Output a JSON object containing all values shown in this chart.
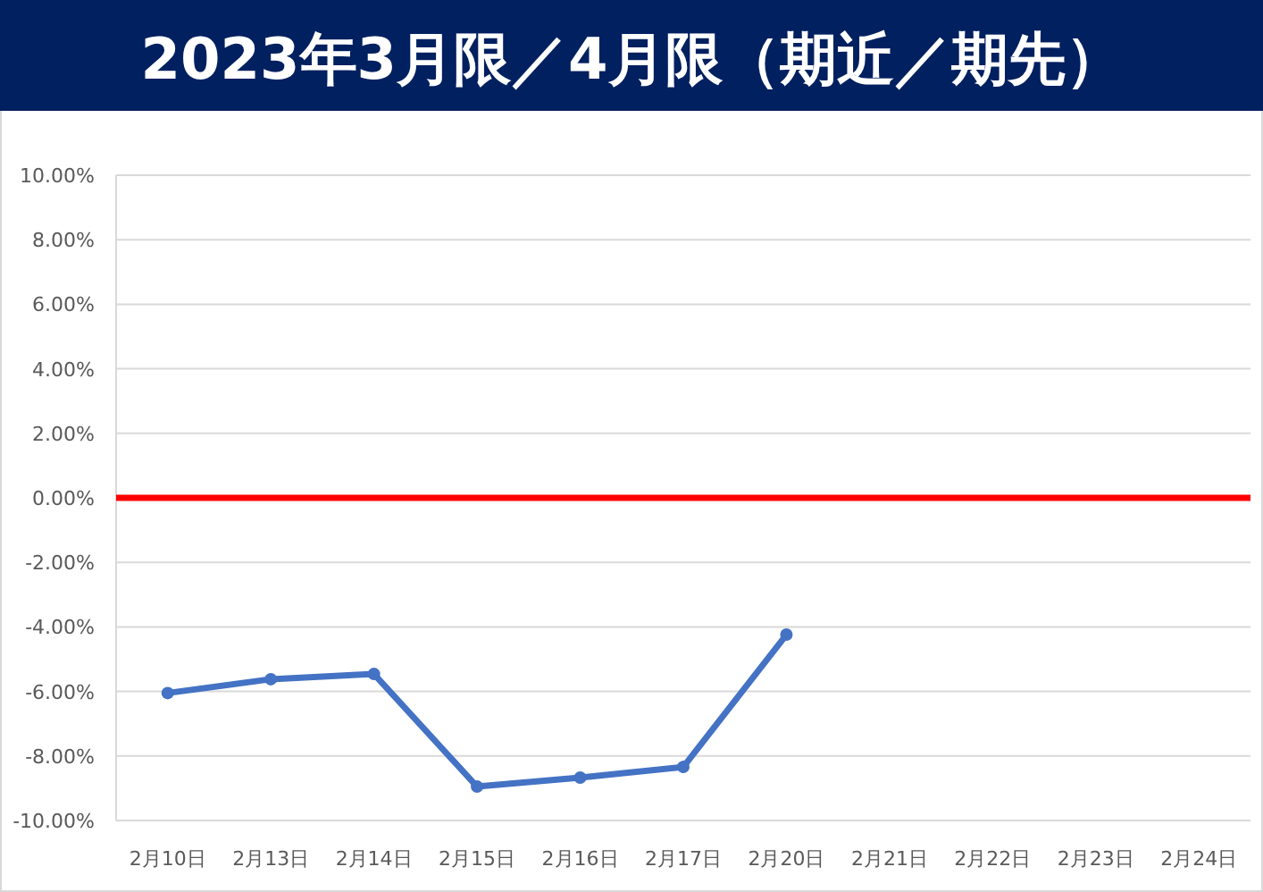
{
  "chart_data": {
    "type": "line",
    "title": "2023年3月限／4月限（期近／期先）",
    "categories": [
      "2月10日",
      "2月13日",
      "2月14日",
      "2月15日",
      "2月16日",
      "2月17日",
      "2月20日",
      "2月21日",
      "2月22日",
      "2月23日",
      "2月24日"
    ],
    "series": [
      {
        "color": "#4472c4",
        "values": [
          -6.05,
          -5.62,
          -5.46,
          -8.95,
          -8.67,
          -8.34,
          -4.24,
          null,
          null,
          null,
          null
        ]
      }
    ],
    "ylim": [
      -10,
      10
    ],
    "yticks": [
      {
        "value": -10,
        "label": "-10.00%"
      },
      {
        "value": -8,
        "label": "-8.00%"
      },
      {
        "value": -6,
        "label": "-6.00%"
      },
      {
        "value": -4,
        "label": "-4.00%"
      },
      {
        "value": -2,
        "label": "-2.00%"
      },
      {
        "value": 0,
        "label": "0.00%"
      },
      {
        "value": 2,
        "label": "2.00%"
      },
      {
        "value": 4,
        "label": "4.00%"
      },
      {
        "value": 6,
        "label": "6.00%"
      },
      {
        "value": 8,
        "label": "8.00%"
      },
      {
        "value": 10,
        "label": "10.00%"
      }
    ],
    "ref_lines": [
      {
        "axis": "y",
        "value": 0,
        "color": "#ff0000"
      }
    ],
    "grid": "y",
    "marker": "circle",
    "line_style": "solid"
  }
}
